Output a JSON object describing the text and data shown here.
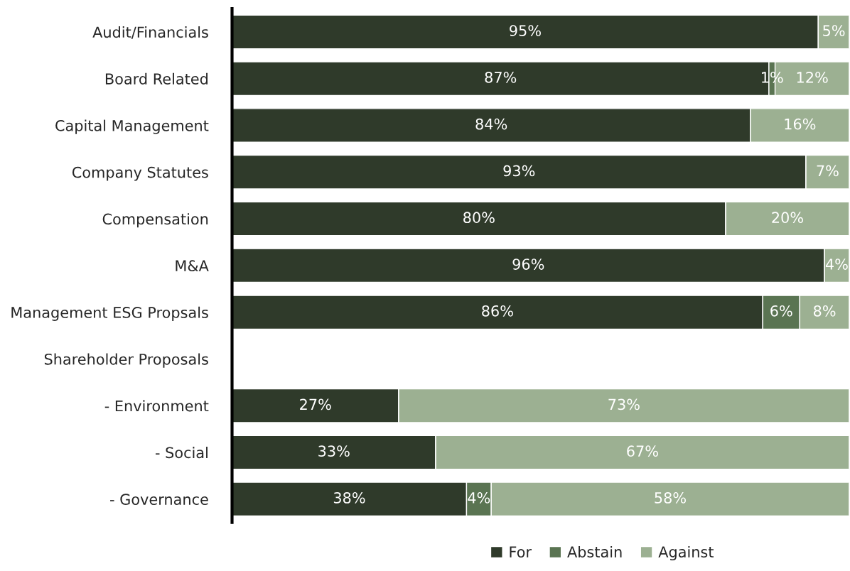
{
  "chart_data": {
    "type": "bar",
    "orientation": "horizontal",
    "stacked": true,
    "categories": [
      "Audit/Financials",
      "Board Related",
      "Capital Management",
      "Company Statutes",
      "Compensation",
      "M&A",
      "Management ESG Propsals",
      "Shareholder Proposals",
      "- Environment",
      "- Social",
      "- Governance"
    ],
    "series": [
      {
        "name": "For",
        "color": "#2f3a2a",
        "values": [
          95,
          87,
          84,
          93,
          80,
          96,
          86,
          null,
          27,
          33,
          38
        ],
        "value_labels": [
          "95%",
          "87%",
          "84%",
          "93%",
          "80%",
          "96%",
          "86%",
          null,
          "27%",
          "33%",
          "38%"
        ]
      },
      {
        "name": "Abstain",
        "color": "#5a7452",
        "values": [
          0,
          1,
          0,
          0,
          0,
          0,
          6,
          null,
          0,
          0,
          4
        ],
        "value_labels": [
          null,
          "1%",
          null,
          null,
          null,
          null,
          "6%",
          null,
          null,
          null,
          "4%"
        ]
      },
      {
        "name": "Against",
        "color": "#9cb092",
        "values": [
          5,
          12,
          16,
          7,
          20,
          4,
          8,
          null,
          73,
          67,
          58
        ],
        "value_labels": [
          "5%",
          "12%",
          "16%",
          "7%",
          "20%",
          "4%",
          "8%",
          null,
          "73%",
          "67%",
          "58%"
        ]
      }
    ],
    "xlim": [
      0,
      100
    ],
    "tick_labels": "y",
    "grid": false,
    "legend": "bottom"
  }
}
